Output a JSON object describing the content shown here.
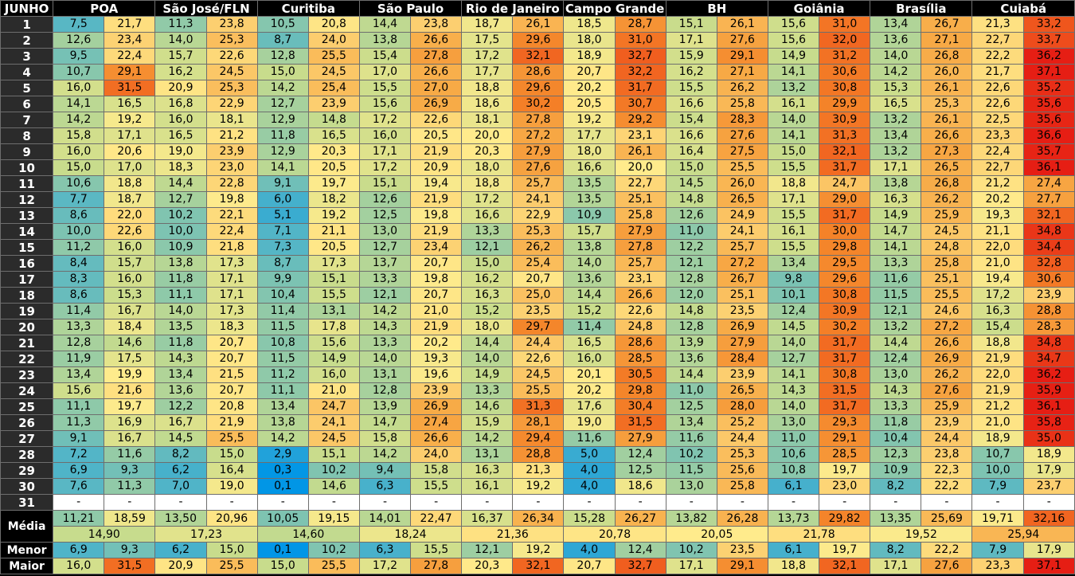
{
  "header": {
    "corner": "JUNHO",
    "cities": [
      "POA",
      "São José/FLN",
      "Curitiba",
      "São Paulo",
      "Rio de Janeiro",
      "Campo Grande",
      "BH",
      "Goiânia",
      "Brasília",
      "Cuiabá"
    ]
  },
  "rows": [
    {
      "day": "1",
      "values": [
        "7,5",
        "21,7",
        "11,3",
        "23,8",
        "10,5",
        "20,8",
        "14,4",
        "23,8",
        "18,7",
        "26,1",
        "18,5",
        "28,7",
        "15,1",
        "26,1",
        "15,6",
        "31,0",
        "13,4",
        "26,7",
        "21,3",
        "33,2"
      ]
    },
    {
      "day": "2",
      "values": [
        "12,6",
        "23,4",
        "14,0",
        "25,3",
        "8,7",
        "24,0",
        "13,8",
        "26,6",
        "17,5",
        "29,6",
        "18,0",
        "31,0",
        "17,1",
        "27,6",
        "15,6",
        "32,0",
        "13,6",
        "27,1",
        "22,7",
        "33,7"
      ]
    },
    {
      "day": "3",
      "values": [
        "9,5",
        "22,4",
        "15,7",
        "22,6",
        "12,8",
        "25,5",
        "15,4",
        "27,8",
        "17,2",
        "32,1",
        "18,9",
        "32,7",
        "15,9",
        "29,1",
        "14,9",
        "31,2",
        "14,0",
        "26,8",
        "22,2",
        "36,2"
      ]
    },
    {
      "day": "4",
      "values": [
        "10,7",
        "29,1",
        "16,2",
        "24,5",
        "15,0",
        "24,5",
        "17,0",
        "26,6",
        "17,7",
        "28,6",
        "20,7",
        "32,2",
        "16,2",
        "27,1",
        "14,1",
        "30,6",
        "14,2",
        "26,0",
        "21,7",
        "37,1"
      ]
    },
    {
      "day": "5",
      "values": [
        "16,0",
        "31,5",
        "20,9",
        "25,3",
        "14,2",
        "25,4",
        "15,5",
        "27,0",
        "18,8",
        "29,6",
        "20,2",
        "31,7",
        "15,5",
        "26,2",
        "13,2",
        "30,8",
        "15,3",
        "26,1",
        "22,6",
        "35,2"
      ]
    },
    {
      "day": "6",
      "values": [
        "14,1",
        "16,5",
        "16,8",
        "22,9",
        "12,7",
        "23,9",
        "15,6",
        "26,9",
        "18,6",
        "30,2",
        "20,5",
        "30,7",
        "16,6",
        "25,8",
        "16,1",
        "29,9",
        "16,5",
        "25,3",
        "22,6",
        "35,6"
      ]
    },
    {
      "day": "7",
      "values": [
        "14,2",
        "19,2",
        "16,0",
        "18,1",
        "12,9",
        "14,8",
        "17,2",
        "22,6",
        "18,1",
        "27,8",
        "19,2",
        "29,2",
        "15,4",
        "28,3",
        "14,0",
        "30,9",
        "13,2",
        "26,1",
        "22,5",
        "35,6"
      ]
    },
    {
      "day": "8",
      "values": [
        "15,8",
        "17,1",
        "16,5",
        "21,2",
        "11,8",
        "16,5",
        "16,0",
        "20,5",
        "20,0",
        "27,2",
        "17,7",
        "23,1",
        "16,6",
        "27,6",
        "14,1",
        "31,3",
        "13,4",
        "26,6",
        "23,3",
        "36,6"
      ]
    },
    {
      "day": "9",
      "values": [
        "16,0",
        "20,6",
        "19,0",
        "23,9",
        "12,9",
        "20,3",
        "17,1",
        "21,9",
        "20,3",
        "27,9",
        "18,0",
        "26,1",
        "16,4",
        "27,5",
        "15,0",
        "32,1",
        "13,2",
        "27,3",
        "22,4",
        "35,7"
      ]
    },
    {
      "day": "10",
      "values": [
        "15,0",
        "17,0",
        "18,3",
        "23,0",
        "14,1",
        "20,5",
        "17,2",
        "20,9",
        "18,0",
        "27,6",
        "16,6",
        "20,0",
        "15,0",
        "25,5",
        "15,5",
        "31,7",
        "17,1",
        "26,5",
        "22,7",
        "36,1"
      ]
    },
    {
      "day": "11",
      "values": [
        "10,6",
        "18,8",
        "14,4",
        "22,8",
        "9,1",
        "19,7",
        "15,1",
        "19,4",
        "18,8",
        "25,7",
        "13,5",
        "22,7",
        "14,5",
        "26,0",
        "18,8",
        "24,7",
        "13,8",
        "26,8",
        "21,2",
        "27,4"
      ]
    },
    {
      "day": "12",
      "values": [
        "7,7",
        "18,7",
        "12,7",
        "19,8",
        "6,0",
        "18,2",
        "12,6",
        "21,9",
        "17,2",
        "24,1",
        "13,5",
        "25,1",
        "14,8",
        "26,5",
        "17,1",
        "29,0",
        "16,3",
        "26,2",
        "20,2",
        "27,7"
      ]
    },
    {
      "day": "13",
      "values": [
        "8,6",
        "22,0",
        "10,2",
        "22,1",
        "5,1",
        "19,2",
        "12,5",
        "19,8",
        "16,6",
        "22,9",
        "10,9",
        "25,8",
        "12,6",
        "24,9",
        "15,5",
        "31,7",
        "14,9",
        "25,9",
        "19,3",
        "32,1"
      ]
    },
    {
      "day": "14",
      "values": [
        "10,0",
        "22,6",
        "10,0",
        "22,4",
        "7,1",
        "21,1",
        "13,0",
        "21,9",
        "13,3",
        "25,3",
        "15,7",
        "27,9",
        "11,0",
        "24,1",
        "16,1",
        "30,0",
        "14,7",
        "24,5",
        "21,1",
        "34,8"
      ]
    },
    {
      "day": "15",
      "values": [
        "11,2",
        "16,0",
        "10,9",
        "21,8",
        "7,3",
        "20,5",
        "12,7",
        "23,4",
        "12,1",
        "26,2",
        "13,8",
        "27,8",
        "12,2",
        "25,7",
        "15,5",
        "29,8",
        "14,1",
        "24,8",
        "22,0",
        "34,4"
      ]
    },
    {
      "day": "16",
      "values": [
        "8,4",
        "15,7",
        "13,8",
        "17,3",
        "8,7",
        "17,3",
        "13,7",
        "20,7",
        "15,0",
        "25,4",
        "14,0",
        "25,7",
        "12,1",
        "27,2",
        "13,4",
        "29,5",
        "13,3",
        "25,8",
        "21,0",
        "32,8"
      ]
    },
    {
      "day": "17",
      "values": [
        "8,3",
        "16,0",
        "11,8",
        "17,1",
        "9,9",
        "15,1",
        "13,3",
        "19,8",
        "16,2",
        "20,7",
        "13,6",
        "23,1",
        "12,8",
        "26,7",
        "9,8",
        "29,6",
        "11,6",
        "25,1",
        "19,4",
        "30,6"
      ]
    },
    {
      "day": "18",
      "values": [
        "8,6",
        "15,3",
        "11,1",
        "17,1",
        "10,4",
        "15,5",
        "12,1",
        "20,7",
        "16,3",
        "25,0",
        "14,4",
        "26,6",
        "12,0",
        "25,1",
        "10,1",
        "30,8",
        "11,5",
        "25,5",
        "17,2",
        "23,9"
      ]
    },
    {
      "day": "19",
      "values": [
        "11,4",
        "16,7",
        "14,0",
        "17,3",
        "11,4",
        "13,1",
        "14,2",
        "21,0",
        "15,2",
        "23,5",
        "15,2",
        "22,6",
        "14,8",
        "23,5",
        "12,4",
        "30,9",
        "12,1",
        "24,6",
        "16,3",
        "28,8"
      ]
    },
    {
      "day": "20",
      "values": [
        "13,3",
        "18,4",
        "13,5",
        "18,3",
        "11,5",
        "17,8",
        "14,3",
        "21,9",
        "18,0",
        "29,7",
        "11,4",
        "24,8",
        "12,8",
        "26,9",
        "14,5",
        "30,2",
        "13,2",
        "27,2",
        "15,4",
        "28,3"
      ]
    },
    {
      "day": "21",
      "values": [
        "12,8",
        "14,6",
        "11,8",
        "20,7",
        "10,8",
        "15,6",
        "13,3",
        "20,2",
        "14,4",
        "24,4",
        "16,5",
        "28,6",
        "13,9",
        "27,9",
        "14,0",
        "31,7",
        "14,4",
        "26,6",
        "18,8",
        "34,8"
      ]
    },
    {
      "day": "22",
      "values": [
        "11,9",
        "17,5",
        "14,3",
        "20,7",
        "11,5",
        "14,9",
        "14,0",
        "19,3",
        "14,0",
        "22,6",
        "16,0",
        "28,5",
        "13,6",
        "28,4",
        "12,7",
        "31,7",
        "12,4",
        "26,9",
        "21,9",
        "34,7"
      ]
    },
    {
      "day": "23",
      "values": [
        "13,4",
        "19,9",
        "13,4",
        "21,5",
        "11,2",
        "16,0",
        "13,1",
        "19,6",
        "14,9",
        "24,5",
        "20,1",
        "30,5",
        "14,4",
        "23,9",
        "14,1",
        "30,8",
        "13,0",
        "26,2",
        "22,0",
        "36,2"
      ]
    },
    {
      "day": "24",
      "values": [
        "15,6",
        "21,6",
        "13,6",
        "20,7",
        "11,1",
        "21,0",
        "12,8",
        "23,9",
        "13,3",
        "25,5",
        "20,2",
        "29,8",
        "11,0",
        "26,5",
        "14,3",
        "31,5",
        "14,3",
        "27,6",
        "21,9",
        "35,9"
      ]
    },
    {
      "day": "25",
      "values": [
        "11,1",
        "19,7",
        "12,2",
        "20,8",
        "13,4",
        "24,7",
        "13,9",
        "26,9",
        "14,6",
        "31,3",
        "17,6",
        "30,4",
        "12,5",
        "28,0",
        "14,0",
        "31,7",
        "13,3",
        "25,9",
        "21,2",
        "36,1"
      ]
    },
    {
      "day": "26",
      "values": [
        "11,3",
        "16,9",
        "16,7",
        "21,9",
        "13,8",
        "24,1",
        "14,7",
        "27,4",
        "15,9",
        "28,1",
        "19,0",
        "31,5",
        "13,4",
        "25,2",
        "13,0",
        "29,3",
        "11,8",
        "23,9",
        "21,0",
        "35,8"
      ]
    },
    {
      "day": "27",
      "values": [
        "9,1",
        "16,7",
        "14,5",
        "25,5",
        "14,2",
        "24,5",
        "15,8",
        "26,6",
        "14,2",
        "29,4",
        "11,6",
        "27,9",
        "11,6",
        "24,4",
        "11,0",
        "29,1",
        "10,4",
        "24,4",
        "18,9",
        "35,0"
      ]
    },
    {
      "day": "28",
      "values": [
        "7,2",
        "11,6",
        "8,2",
        "15,0",
        "2,9",
        "15,1",
        "14,2",
        "24,0",
        "13,1",
        "28,8",
        "5,0",
        "12,4",
        "10,2",
        "25,3",
        "10,6",
        "28,5",
        "12,3",
        "23,8",
        "10,7",
        "18,9"
      ]
    },
    {
      "day": "29",
      "values": [
        "6,9",
        "9,3",
        "6,2",
        "16,4",
        "0,3",
        "10,2",
        "9,4",
        "15,8",
        "16,3",
        "21,3",
        "4,0",
        "12,5",
        "11,5",
        "25,6",
        "10,8",
        "19,7",
        "10,9",
        "22,3",
        "10,0",
        "17,9"
      ]
    },
    {
      "day": "30",
      "values": [
        "7,6",
        "11,3",
        "7,0",
        "19,0",
        "0,1",
        "14,6",
        "6,3",
        "15,5",
        "16,1",
        "19,2",
        "4,0",
        "18,6",
        "13,0",
        "25,8",
        "6,1",
        "23,0",
        "8,2",
        "22,2",
        "7,9",
        "23,7"
      ]
    },
    {
      "day": "31",
      "values": [
        "-",
        "-",
        "-",
        "-",
        "-",
        "-",
        "-",
        "-",
        "-",
        "-",
        "-",
        "-",
        "-",
        "-",
        "-",
        "-",
        "-",
        "-",
        "-",
        "-"
      ]
    }
  ],
  "summary": {
    "media_label": "Média",
    "media_values": [
      "11,21",
      "18,59",
      "13,50",
      "20,96",
      "10,05",
      "19,15",
      "14,01",
      "22,47",
      "16,37",
      "26,34",
      "15,28",
      "26,27",
      "13,82",
      "26,28",
      "13,73",
      "29,82",
      "13,35",
      "25,69",
      "19,71",
      "32,16"
    ],
    "media_combined": [
      "14,90",
      "17,23",
      "14,60",
      "18,24",
      "21,36",
      "20,78",
      "20,05",
      "21,78",
      "19,52",
      "25,94"
    ],
    "menor_label": "Menor",
    "menor_values": [
      "6,9",
      "9,3",
      "6,2",
      "15,0",
      "0,1",
      "10,2",
      "6,3",
      "15,5",
      "12,1",
      "19,2",
      "4,0",
      "12,4",
      "10,2",
      "23,5",
      "6,1",
      "19,7",
      "8,2",
      "22,2",
      "7,9",
      "17,9"
    ],
    "maior_label": "Maior",
    "maior_values": [
      "16,0",
      "31,5",
      "20,9",
      "25,5",
      "15,0",
      "25,5",
      "17,2",
      "27,8",
      "20,3",
      "32,1",
      "20,7",
      "32,7",
      "17,1",
      "29,1",
      "18,8",
      "32,1",
      "17,1",
      "27,6",
      "23,3",
      "37,1"
    ]
  }
}
